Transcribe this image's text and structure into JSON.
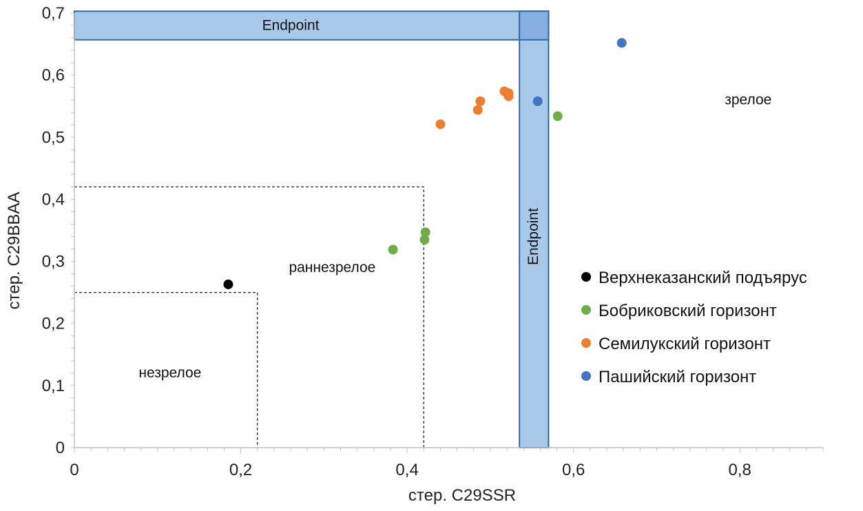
{
  "chart_data": {
    "type": "scatter",
    "title": "",
    "xlabel": "стер. C29SSR",
    "ylabel": "стер. C29BBAA",
    "xlim": [
      0,
      0.9
    ],
    "ylim": [
      0,
      0.7
    ],
    "x_ticks": [
      {
        "value": 0,
        "label": "0"
      },
      {
        "value": 0.2,
        "label": "0,2"
      },
      {
        "value": 0.4,
        "label": "0,4"
      },
      {
        "value": 0.6,
        "label": "0,6"
      },
      {
        "value": 0.8,
        "label": "0,8"
      }
    ],
    "y_ticks": [
      {
        "value": 0,
        "label": "0"
      },
      {
        "value": 0.1,
        "label": "0,1"
      },
      {
        "value": 0.2,
        "label": "0,2"
      },
      {
        "value": 0.3,
        "label": "0,3"
      },
      {
        "value": 0.4,
        "label": "0,4"
      },
      {
        "value": 0.5,
        "label": "0,5"
      },
      {
        "value": 0.6,
        "label": "0,6"
      },
      {
        "value": 0.7,
        "label": "0,7"
      }
    ],
    "grid": false,
    "legend_position": "right",
    "series": [
      {
        "name": "Верхнеказанский подъярус",
        "color": "#000000",
        "points": [
          {
            "x": 0.185,
            "y": 0.263
          }
        ]
      },
      {
        "name": "Бобриковский горизонт",
        "color": "#70ad47",
        "points": [
          {
            "x": 0.383,
            "y": 0.319
          },
          {
            "x": 0.421,
            "y": 0.335
          },
          {
            "x": 0.422,
            "y": 0.347
          },
          {
            "x": 0.581,
            "y": 0.534
          }
        ]
      },
      {
        "name": "Семилукский горизонт",
        "color": "#ed7d31",
        "points": [
          {
            "x": 0.44,
            "y": 0.521
          },
          {
            "x": 0.485,
            "y": 0.544
          },
          {
            "x": 0.488,
            "y": 0.558
          },
          {
            "x": 0.517,
            "y": 0.574
          },
          {
            "x": 0.522,
            "y": 0.571
          },
          {
            "x": 0.522,
            "y": 0.566
          }
        ]
      },
      {
        "name": "Пашийский горизонт",
        "color": "#4472c4",
        "points": [
          {
            "x": 0.557,
            "y": 0.558
          },
          {
            "x": 0.658,
            "y": 0.652
          }
        ]
      }
    ],
    "endpoint_bands": [
      {
        "label": "Endpoint",
        "orientation": "horizontal",
        "x_range": [
          0,
          0.57
        ],
        "y_range": [
          0.657,
          0.703
        ]
      },
      {
        "label": "Endpoint",
        "orientation": "vertical",
        "x_range": [
          0.535,
          0.57
        ],
        "y_range": [
          0,
          0.703
        ]
      }
    ],
    "zone_boundaries": [
      {
        "x": 0.22,
        "y": 0.25
      },
      {
        "x": 0.42,
        "y": 0.42
      }
    ],
    "zone_labels": [
      {
        "text": "незрелое",
        "x": 0.115,
        "y": 0.113
      },
      {
        "text": "раннезрелое",
        "x": 0.31,
        "y": 0.283
      },
      {
        "text": "зрелое",
        "x": 0.81,
        "y": 0.553
      }
    ],
    "band_color": "#a9c9ea",
    "band_overlap_color": "#84afe0",
    "band_border_color": "#2f6aa3"
  }
}
